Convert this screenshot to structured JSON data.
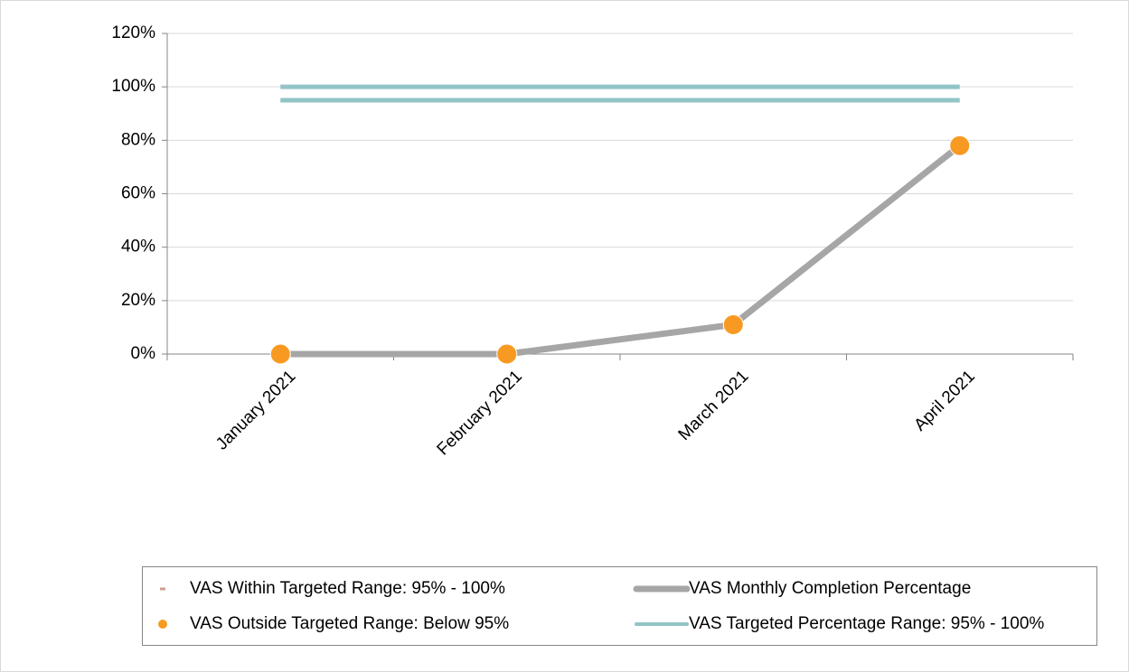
{
  "chart_data": {
    "type": "line",
    "categories": [
      "January 2021",
      "February 2021",
      "March 2021",
      "April 2021"
    ],
    "series": [
      {
        "name": "VAS Within Targeted Range: 95% - 100%",
        "color": "#c9a08f",
        "style": "dash",
        "values": [
          null,
          null,
          null,
          null
        ]
      },
      {
        "name": "VAS Monthly Completion Percentage",
        "color": "#a6a6a6",
        "style": "line",
        "values": [
          0,
          0,
          11,
          78
        ]
      },
      {
        "name": "VAS Outside Targeted Range: Below 95%",
        "color": "#f89a22",
        "style": "dot",
        "values": [
          0,
          0,
          11,
          78
        ]
      },
      {
        "name": "VAS Targeted Percentage Range: 95% - 100%",
        "color": "#93c4c6",
        "style": "line",
        "values": [
          100,
          100,
          100,
          100
        ],
        "lower_values": [
          95,
          95,
          95,
          95
        ]
      }
    ],
    "ylim": [
      0,
      120
    ],
    "yticks": [
      {
        "value": 0,
        "label": "0%"
      },
      {
        "value": 20,
        "label": "20%"
      },
      {
        "value": 40,
        "label": "40%"
      },
      {
        "value": 60,
        "label": "60%"
      },
      {
        "value": 80,
        "label": "80%"
      },
      {
        "value": 100,
        "label": "100%"
      },
      {
        "value": 120,
        "label": "120%"
      }
    ],
    "grid": true,
    "legend": "bottom"
  }
}
